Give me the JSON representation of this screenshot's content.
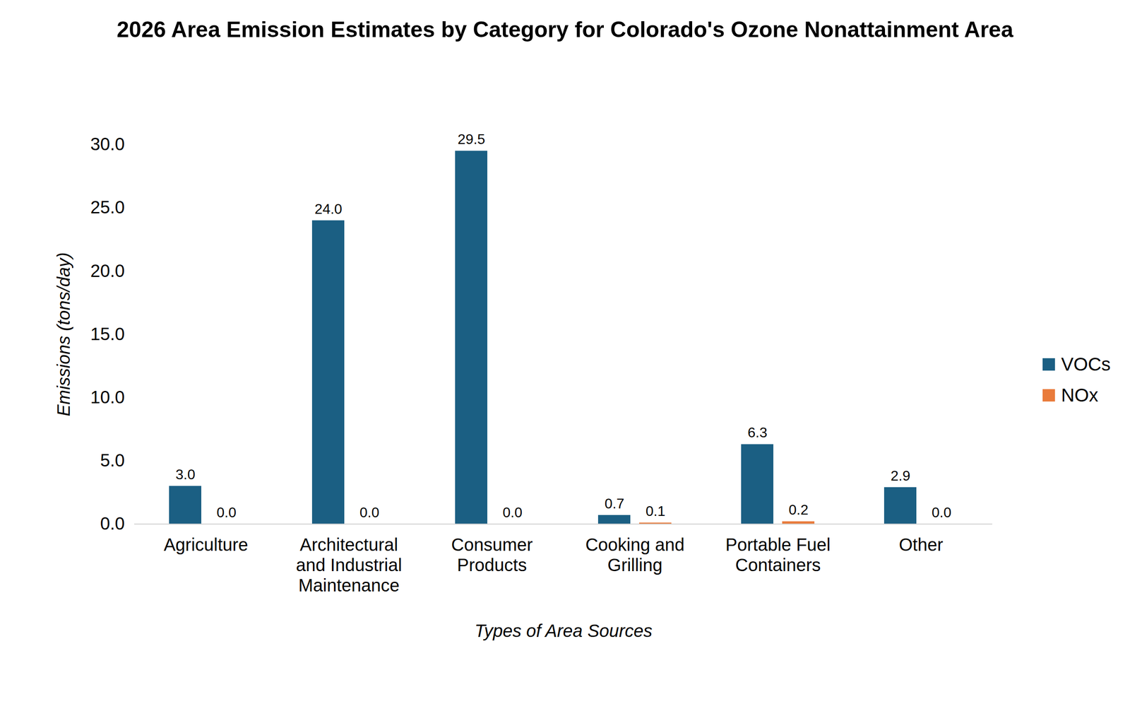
{
  "chart_data": {
    "type": "bar",
    "title": "2026 Area Emission Estimates by Category for Colorado's Ozone Nonattainment Area",
    "x_label": "Types of Area Sources",
    "y_label": "Emissions (tons/day)",
    "categories": [
      "Agriculture",
      "Architectural and Industrial Maintenance",
      "Consumer Products",
      "Cooking and Grilling",
      "Portable Fuel Containers",
      "Other"
    ],
    "series": [
      {
        "name": "VOCs",
        "color": "#1b5f83",
        "values": [
          3.0,
          24.0,
          29.5,
          0.7,
          6.3,
          2.9
        ],
        "value_labels": [
          "3.0",
          "24.0",
          "29.5",
          "0.7",
          "6.3",
          "2.9"
        ]
      },
      {
        "name": "NOx",
        "color": "#e97b3b",
        "values": [
          0.0,
          0.0,
          0.0,
          0.1,
          0.2,
          0.0
        ],
        "value_labels": [
          "0.0",
          "0.0",
          "0.0",
          "0.1",
          "0.2",
          "0.0"
        ]
      }
    ],
    "ylim": [
      0,
      30
    ],
    "yticks": [
      {
        "value": 0,
        "label": "0.0"
      },
      {
        "value": 5,
        "label": "5.0"
      },
      {
        "value": 10,
        "label": "10.0"
      },
      {
        "value": 15,
        "label": "15.0"
      },
      {
        "value": 20,
        "label": "20.0"
      },
      {
        "value": 25,
        "label": "25.0"
      },
      {
        "value": 30,
        "label": "30.0"
      }
    ],
    "grid": false,
    "legend": "right",
    "data_labels": true
  }
}
